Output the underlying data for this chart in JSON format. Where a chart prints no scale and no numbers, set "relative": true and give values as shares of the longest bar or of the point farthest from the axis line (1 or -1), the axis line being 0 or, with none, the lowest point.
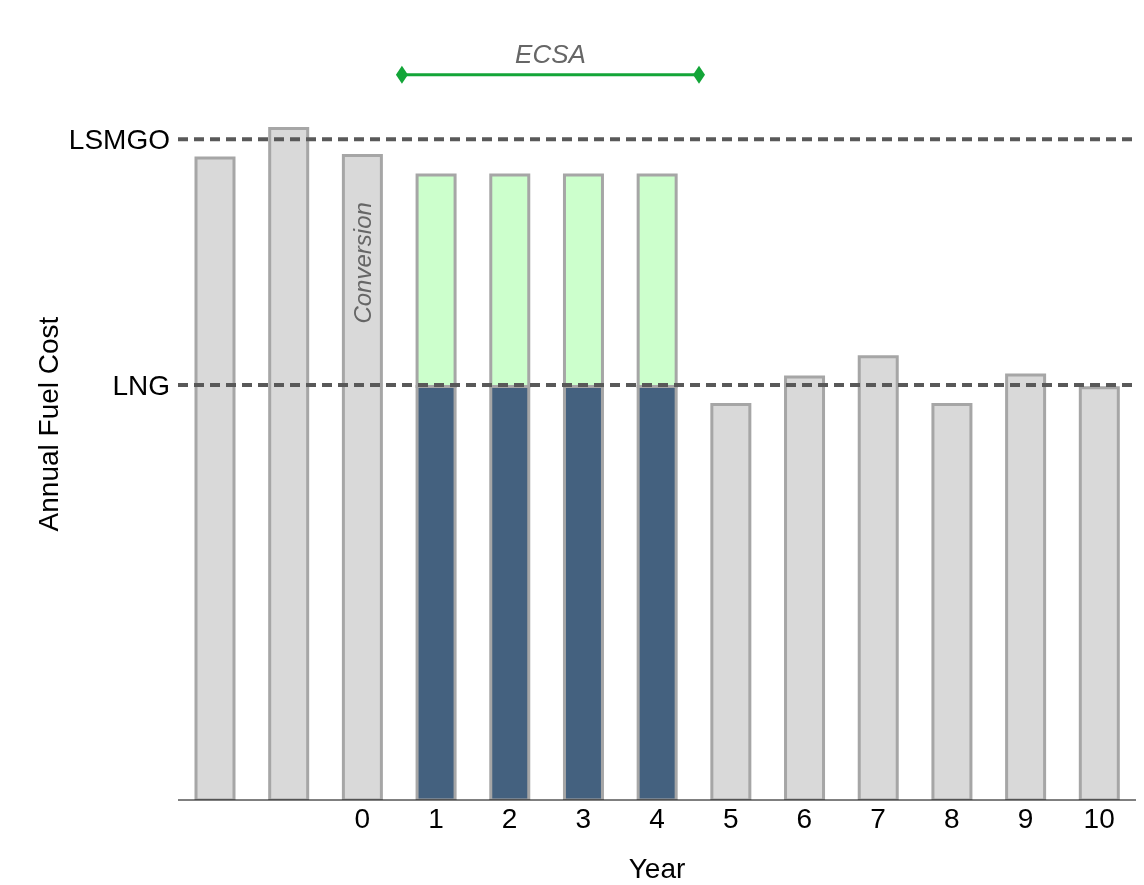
{
  "chart_data": {
    "type": "bar",
    "relative": true,
    "stacked": true,
    "xlabel": "Year",
    "ylabel": "Annual Fuel Cost",
    "categories": [
      null,
      null,
      "0",
      "1",
      "2",
      "3",
      "4",
      "5",
      "6",
      "7",
      "8",
      "9",
      "10"
    ],
    "series": [
      {
        "color": "#d9d9d9",
        "values": [
          0.956,
          1,
          0.96,
          null,
          null,
          null,
          null,
          0.589,
          0.63,
          0.66,
          0.589,
          0.633,
          0.614
        ]
      },
      {
        "color": "#44617f",
        "values": [
          null,
          null,
          null,
          0.616,
          0.616,
          0.616,
          0.616,
          null,
          null,
          null,
          null,
          null,
          null
        ]
      },
      {
        "color": "#ccffcc",
        "values": [
          null,
          null,
          null,
          0.315,
          0.315,
          0.315,
          0.315,
          null,
          null,
          null,
          null,
          null,
          null
        ]
      }
    ],
    "ref_lines": [
      {
        "axis": "y",
        "value": 0.984,
        "label": "LSMGO",
        "color": "#595959",
        "line_style": "dashed"
      },
      {
        "axis": "y",
        "value": 0.618,
        "label": "LNG",
        "color": "#595959",
        "line_style": "dashed"
      }
    ],
    "annotations": [
      "ECSA",
      "Conversion"
    ],
    "grid": false,
    "legend": false
  }
}
